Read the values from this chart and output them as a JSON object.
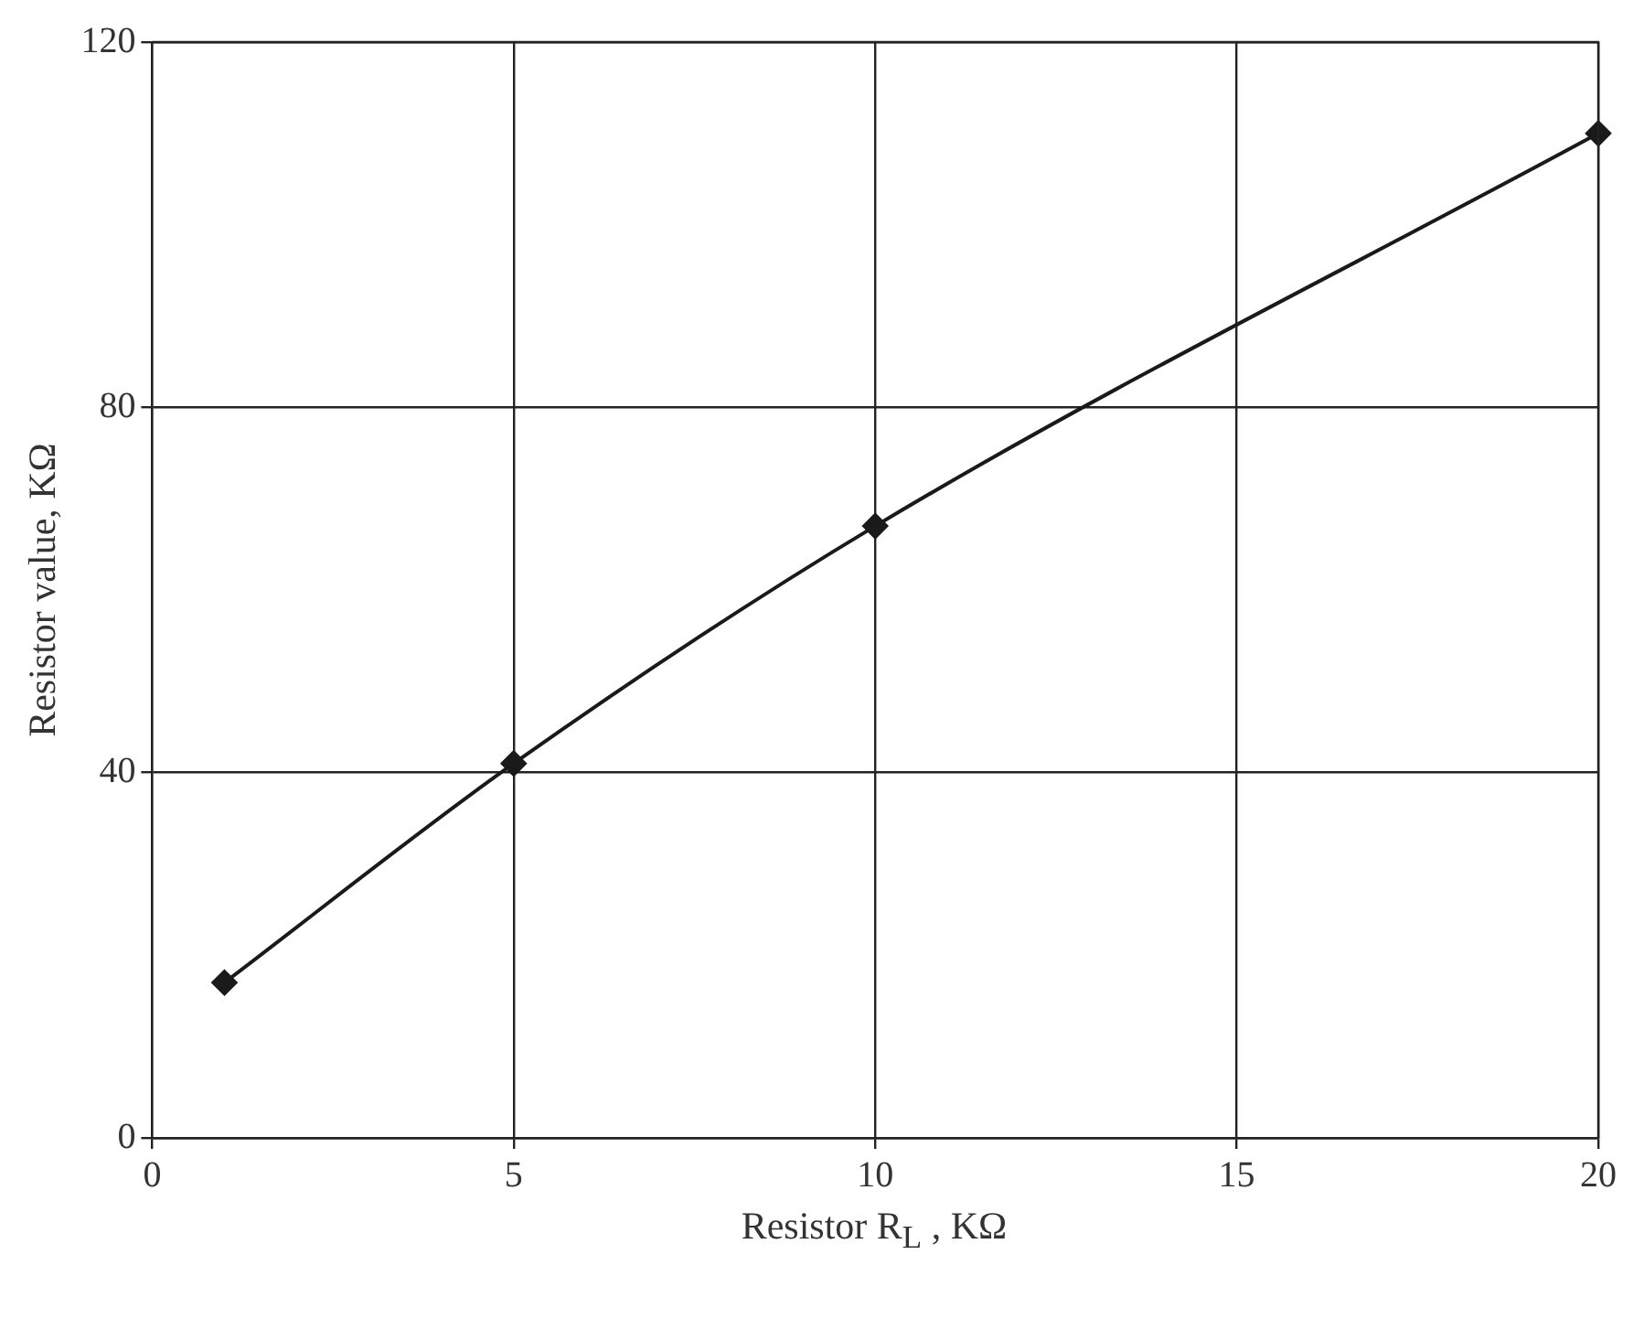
{
  "chart_data": {
    "type": "line",
    "xlabel": "Resistor R$_{L}$ , KΩ",
    "ylabel": "Resistor value, KΩ",
    "x": [
      1,
      5,
      10,
      20
    ],
    "series": [
      {
        "color": "#1a1a1a",
        "values": [
          17,
          41,
          67,
          110
        ]
      }
    ],
    "xlim": [
      0,
      20
    ],
    "xticks": [
      0,
      5,
      10,
      15,
      20
    ],
    "ylim": [
      0,
      120
    ],
    "yticks": [
      0,
      40,
      80,
      120
    ],
    "grid": true,
    "marker": "diamond",
    "line_style": "solid",
    "legend": false
  }
}
